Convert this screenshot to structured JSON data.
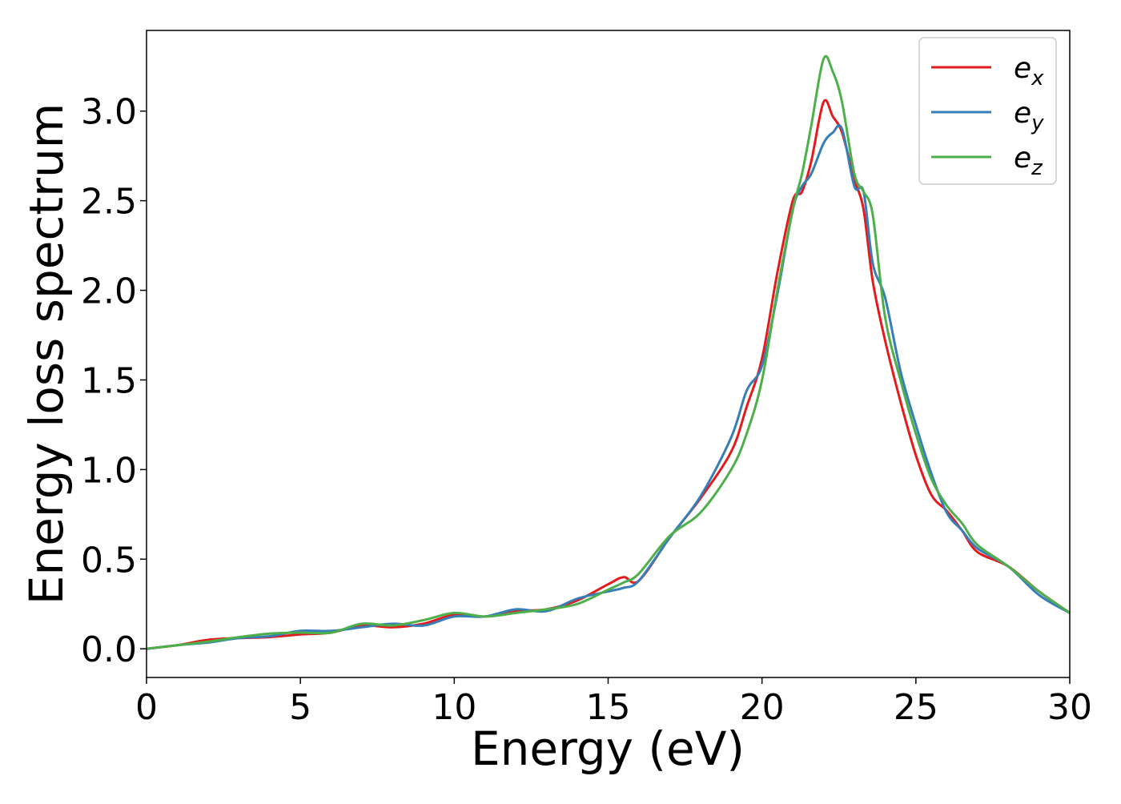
{
  "chart_data": {
    "type": "line",
    "title": "",
    "xlabel": "Energy (eV)",
    "ylabel": "Energy loss spectrum",
    "xlim": [
      0,
      30
    ],
    "ylim": [
      -0.16,
      3.45
    ],
    "xticks": [
      0,
      5,
      10,
      15,
      20,
      25,
      30
    ],
    "xtick_labels": [
      "0",
      "5",
      "10",
      "15",
      "20",
      "25",
      "30"
    ],
    "yticks": [
      0.0,
      0.5,
      1.0,
      1.5,
      2.0,
      2.5,
      3.0
    ],
    "ytick_labels": [
      "0.0",
      "0.5",
      "1.0",
      "1.5",
      "2.0",
      "2.5",
      "3.0"
    ],
    "grid": false,
    "legend_position": "top-right",
    "series": [
      {
        "name": "e_x",
        "label_main": "e",
        "label_sub": "x",
        "color": "#e41a1c",
        "x": [
          0,
          1,
          2,
          3,
          4,
          5,
          6,
          7,
          8,
          9,
          10,
          11,
          12,
          13,
          14,
          15,
          15.5,
          16,
          17,
          18,
          19,
          19.5,
          20,
          20.5,
          21,
          21.3,
          21.6,
          22,
          22.3,
          22.6,
          23,
          23.3,
          23.6,
          24,
          24.5,
          25,
          25.5,
          26,
          26.5,
          27,
          28,
          29,
          30
        ],
        "y": [
          0.0,
          0.02,
          0.05,
          0.06,
          0.065,
          0.08,
          0.09,
          0.13,
          0.12,
          0.14,
          0.19,
          0.18,
          0.21,
          0.22,
          0.27,
          0.36,
          0.4,
          0.38,
          0.62,
          0.84,
          1.1,
          1.35,
          1.62,
          2.1,
          2.5,
          2.55,
          2.72,
          3.05,
          2.97,
          2.88,
          2.62,
          2.45,
          2.05,
          1.72,
          1.38,
          1.08,
          0.86,
          0.77,
          0.66,
          0.54,
          0.46,
          0.32,
          0.2
        ]
      },
      {
        "name": "e_y",
        "label_main": "e",
        "label_sub": "y",
        "color": "#377eb8",
        "x": [
          0,
          1,
          2,
          3,
          4,
          5,
          6,
          7,
          8,
          9,
          10,
          11,
          12,
          13,
          14,
          15,
          15.5,
          16,
          17,
          18,
          19,
          19.5,
          20,
          20.5,
          21,
          21.3,
          21.6,
          22,
          22.3,
          22.6,
          23,
          23.3,
          23.6,
          24,
          24.5,
          25,
          25.5,
          26,
          26.5,
          27,
          28,
          29,
          30
        ],
        "y": [
          0.0,
          0.02,
          0.035,
          0.06,
          0.07,
          0.1,
          0.1,
          0.12,
          0.14,
          0.13,
          0.18,
          0.18,
          0.22,
          0.21,
          0.28,
          0.32,
          0.34,
          0.38,
          0.62,
          0.85,
          1.18,
          1.44,
          1.58,
          1.98,
          2.45,
          2.58,
          2.65,
          2.82,
          2.88,
          2.9,
          2.58,
          2.55,
          2.15,
          1.96,
          1.55,
          1.25,
          0.98,
          0.76,
          0.66,
          0.56,
          0.46,
          0.3,
          0.2
        ]
      },
      {
        "name": "e_z",
        "label_main": "e",
        "label_sub": "z",
        "color": "#4daf4a",
        "x": [
          0,
          1,
          2,
          3,
          4,
          5,
          6,
          7,
          8,
          9,
          10,
          11,
          12,
          13,
          14,
          15,
          15.5,
          16,
          17,
          18,
          19,
          19.5,
          20,
          20.5,
          21,
          21.3,
          21.6,
          22,
          22.3,
          22.6,
          23,
          23.3,
          23.6,
          24,
          24.5,
          25,
          25.5,
          26,
          26.5,
          27,
          28,
          29,
          30
        ],
        "y": [
          0.0,
          0.02,
          0.04,
          0.065,
          0.085,
          0.09,
          0.09,
          0.14,
          0.13,
          0.16,
          0.2,
          0.18,
          0.2,
          0.22,
          0.25,
          0.33,
          0.37,
          0.42,
          0.63,
          0.76,
          1.0,
          1.2,
          1.5,
          2.0,
          2.45,
          2.65,
          2.92,
          3.29,
          3.22,
          3.05,
          2.65,
          2.55,
          2.42,
          1.85,
          1.5,
          1.2,
          0.95,
          0.8,
          0.7,
          0.58,
          0.46,
          0.32,
          0.2
        ]
      }
    ]
  }
}
